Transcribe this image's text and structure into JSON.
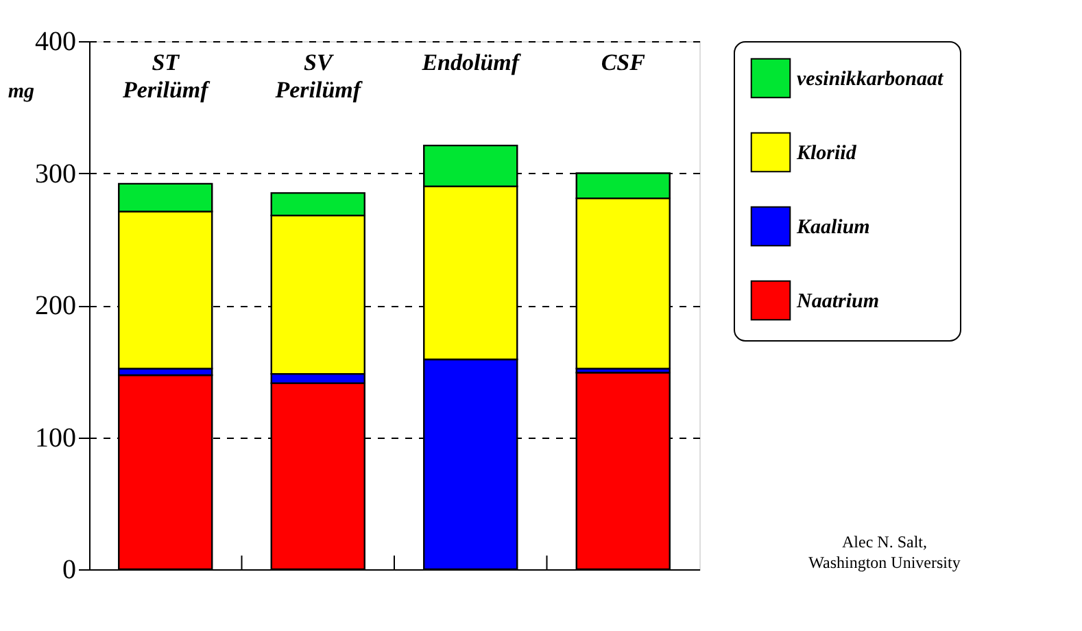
{
  "chart_data": {
    "type": "bar",
    "stacked": true,
    "ylabel": "mg",
    "categories": [
      "ST\nPerilümf",
      "SV\nPerilümf",
      "Endolümf",
      "CSF"
    ],
    "series": [
      {
        "name": "Naatrium",
        "color": "#ff0000",
        "values": [
          147,
          141,
          0,
          149
        ]
      },
      {
        "name": "Kaalium",
        "color": "#0000ff",
        "values": [
          5,
          7,
          159,
          3
        ]
      },
      {
        "name": "Kloriid",
        "color": "#ffff00",
        "values": [
          119,
          120,
          131,
          129
        ]
      },
      {
        "name": "vesinikkarbonaat",
        "color": "#00e632",
        "values": [
          21,
          17,
          31,
          19
        ]
      }
    ],
    "ylim": [
      0,
      400
    ],
    "yticks": [
      0,
      100,
      200,
      300,
      400
    ],
    "grid": "y",
    "legend": "right",
    "annotations": [
      "Alec N. Salt,\nWashington University"
    ]
  }
}
